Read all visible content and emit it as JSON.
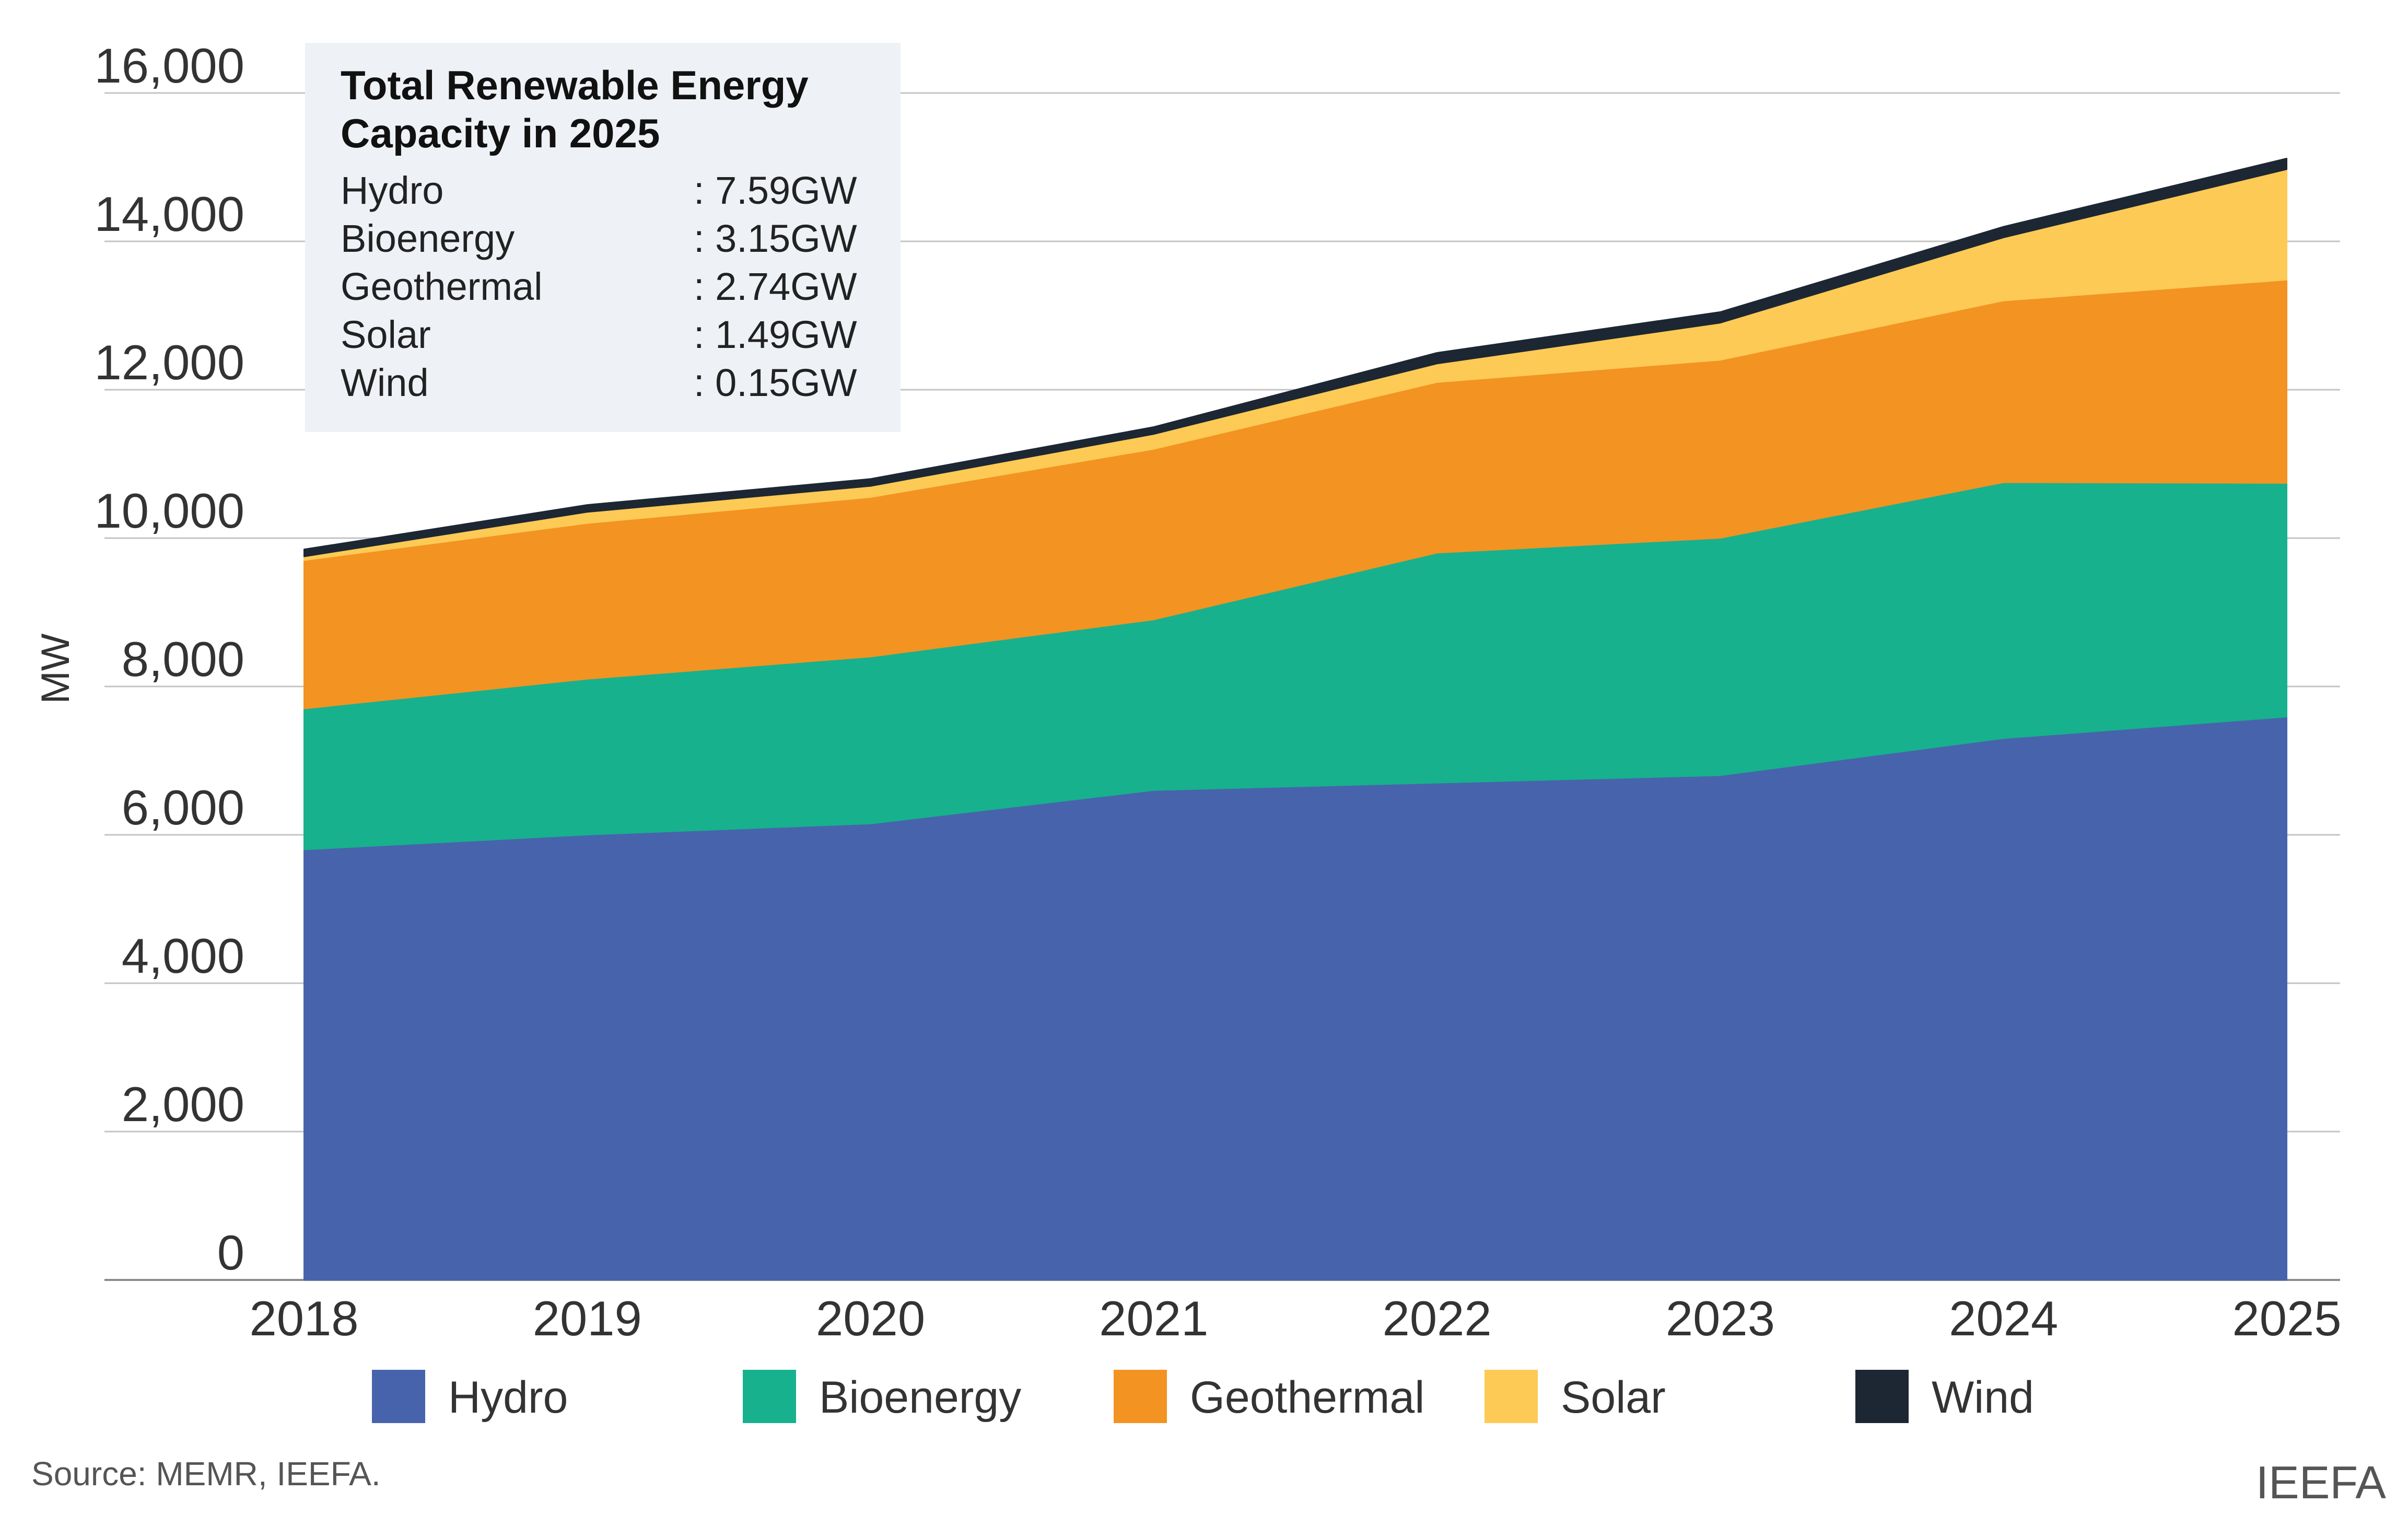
{
  "chart_data": {
    "type": "area",
    "stacked": true,
    "categories": [
      "2018",
      "2019",
      "2020",
      "2021",
      "2022",
      "2023",
      "2024",
      "2025"
    ],
    "series": [
      {
        "name": "Hydro",
        "color": "#4763AC",
        "values": [
          5800,
          6000,
          6150,
          6600,
          6700,
          6800,
          7300,
          7590
        ]
      },
      {
        "name": "Bioenergy",
        "color": "#17B18E",
        "values": [
          1900,
          2100,
          2250,
          2300,
          3100,
          3200,
          3450,
          3150
        ]
      },
      {
        "name": "Geothermal",
        "color": "#F39322",
        "values": [
          2000,
          2100,
          2150,
          2300,
          2300,
          2400,
          2450,
          2740
        ]
      },
      {
        "name": "Solar",
        "color": "#FDCA55",
        "values": [
          50,
          150,
          150,
          200,
          250,
          500,
          850,
          1490
        ]
      },
      {
        "name": "Wind",
        "color": "#1D2733",
        "values": [
          100,
          100,
          100,
          100,
          150,
          150,
          150,
          150
        ]
      }
    ],
    "ylabel": "MW",
    "xlabel": "",
    "ylim": [
      0,
      16000
    ],
    "yticks": [
      "0",
      "2,000",
      "4,000",
      "6,000",
      "8,000",
      "10,000",
      "12,000",
      "14,000",
      "16,000"
    ],
    "ytick_values": [
      0,
      2000,
      4000,
      6000,
      8000,
      10000,
      12000,
      14000,
      16000
    ],
    "grid": true,
    "legend_position": "bottom",
    "annotation": {
      "title_line1": "Total Renewable Energy",
      "title_line2": "Capacity in 2025",
      "rows": [
        {
          "label": "Hydro",
          "value": ": 7.59GW"
        },
        {
          "label": "Bioenergy",
          "value": ": 3.15GW"
        },
        {
          "label": "Geothermal",
          "value": ": 2.74GW"
        },
        {
          "label": "Solar",
          "value": ": 1.49GW"
        },
        {
          "label": "Wind",
          "value": ": 0.15GW"
        }
      ]
    }
  },
  "footer": {
    "source": "Source: MEMR, IEEFA.",
    "brand": "IEEFA"
  }
}
